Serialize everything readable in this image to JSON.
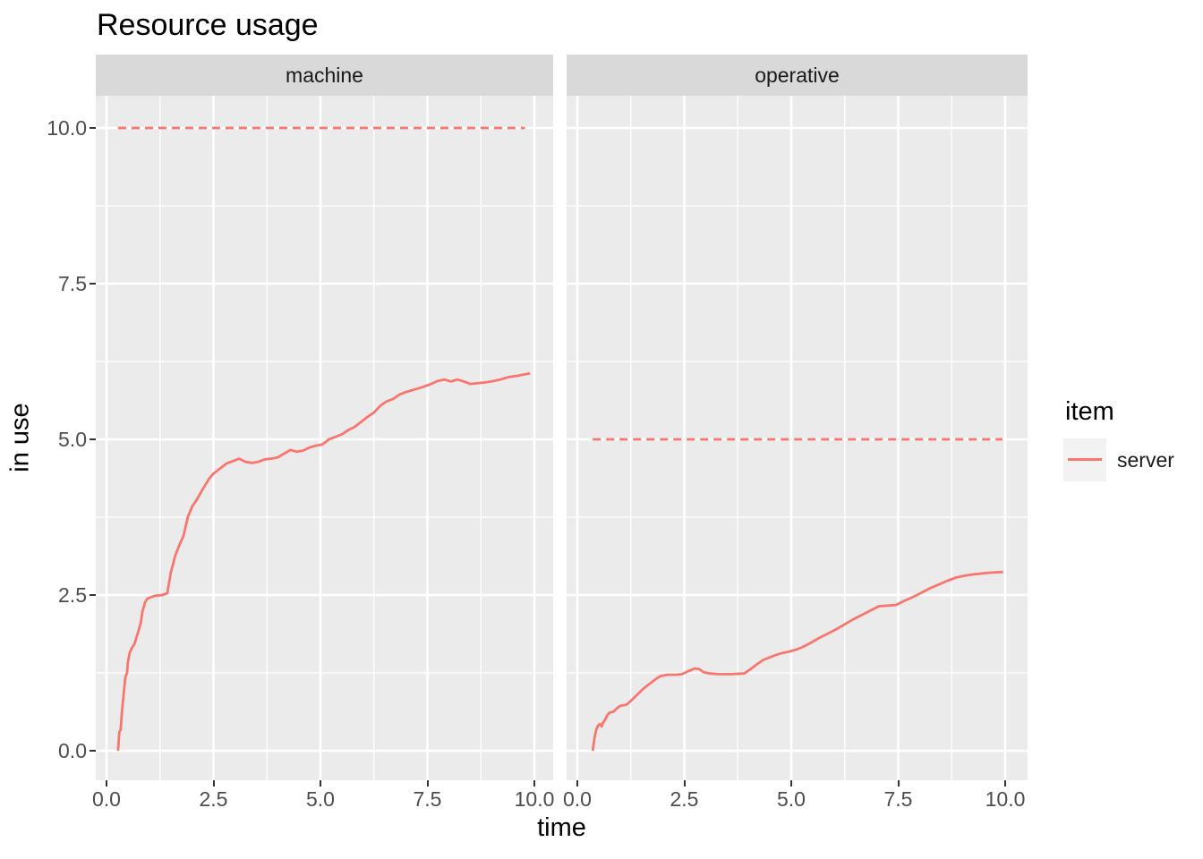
{
  "title": "Resource usage",
  "axes": {
    "x_title": "time",
    "y_title": "in use",
    "x_major": [
      0,
      2.5,
      5,
      7.5,
      10
    ],
    "x_minor": [
      1.25,
      3.75,
      6.25,
      8.75
    ],
    "x_tick_labels": [
      "0.0",
      "2.5",
      "5.0",
      "7.5",
      "10.0"
    ],
    "y_major": [
      0,
      2.5,
      5,
      7.5,
      10
    ],
    "y_minor": [
      1.25,
      3.75,
      6.25,
      8.75
    ],
    "y_tick_labels": [
      "0.0",
      "2.5",
      "5.0",
      "7.5",
      "10.0"
    ]
  },
  "legend": {
    "title": "item",
    "items": [
      {
        "label": "server",
        "color": "#F8766D"
      }
    ]
  },
  "colors": {
    "series_line": "#F8766D",
    "capacity_line": "#F8766D",
    "panel_background": "#EBEBEB",
    "strip_background": "#D9D9D9",
    "gridline": "#FFFFFF",
    "tick_mark": "#333333",
    "tick_text": "#4D4D4D"
  },
  "chart_data": {
    "type": "line",
    "title": "Resource usage",
    "xlabel": "time",
    "ylabel": "in use",
    "x_range": [
      0,
      10
    ],
    "y_range": [
      0,
      10
    ],
    "x_domain_expanded": [
      -0.25,
      10.5
    ],
    "y_domain_expanded": [
      -0.47,
      10.53
    ],
    "grid": true,
    "legend_position": "right",
    "facets": [
      {
        "name": "machine",
        "capacity": 10,
        "capacity_span": [
          0.27,
          9.78
        ],
        "series": [
          {
            "name": "server",
            "points": [
              [
                0.27,
                0
              ],
              [
                0.3,
                0.3
              ],
              [
                0.33,
                0.34
              ],
              [
                0.36,
                0.62
              ],
              [
                0.4,
                0.9
              ],
              [
                0.44,
                1.18
              ],
              [
                0.48,
                1.25
              ],
              [
                0.5,
                1.42
              ],
              [
                0.54,
                1.57
              ],
              [
                0.6,
                1.66
              ],
              [
                0.65,
                1.71
              ],
              [
                0.7,
                1.82
              ],
              [
                0.75,
                1.93
              ],
              [
                0.8,
                2.05
              ],
              [
                0.84,
                2.24
              ],
              [
                0.9,
                2.38
              ],
              [
                0.95,
                2.44
              ],
              [
                1.05,
                2.47
              ],
              [
                1.15,
                2.49
              ],
              [
                1.3,
                2.5
              ],
              [
                1.42,
                2.53
              ],
              [
                1.5,
                2.85
              ],
              [
                1.6,
                3.12
              ],
              [
                1.7,
                3.3
              ],
              [
                1.8,
                3.45
              ],
              [
                1.9,
                3.75
              ],
              [
                2.0,
                3.92
              ],
              [
                2.1,
                4.02
              ],
              [
                2.25,
                4.2
              ],
              [
                2.4,
                4.37
              ],
              [
                2.5,
                4.45
              ],
              [
                2.65,
                4.53
              ],
              [
                2.8,
                4.61
              ],
              [
                2.95,
                4.65
              ],
              [
                3.1,
                4.69
              ],
              [
                3.25,
                4.64
              ],
              [
                3.4,
                4.62
              ],
              [
                3.55,
                4.64
              ],
              [
                3.7,
                4.68
              ],
              [
                3.85,
                4.69
              ],
              [
                4.0,
                4.71
              ],
              [
                4.15,
                4.77
              ],
              [
                4.3,
                4.83
              ],
              [
                4.45,
                4.8
              ],
              [
                4.6,
                4.82
              ],
              [
                4.75,
                4.87
              ],
              [
                4.9,
                4.9
              ],
              [
                5.05,
                4.92
              ],
              [
                5.2,
                5.0
              ],
              [
                5.35,
                5.04
              ],
              [
                5.5,
                5.08
              ],
              [
                5.65,
                5.15
              ],
              [
                5.8,
                5.2
              ],
              [
                5.95,
                5.28
              ],
              [
                6.1,
                5.36
              ],
              [
                6.25,
                5.43
              ],
              [
                6.4,
                5.54
              ],
              [
                6.55,
                5.61
              ],
              [
                6.7,
                5.65
              ],
              [
                6.85,
                5.72
              ],
              [
                7.0,
                5.76
              ],
              [
                7.15,
                5.79
              ],
              [
                7.35,
                5.83
              ],
              [
                7.55,
                5.88
              ],
              [
                7.75,
                5.94
              ],
              [
                7.9,
                5.96
              ],
              [
                8.05,
                5.93
              ],
              [
                8.2,
                5.96
              ],
              [
                8.35,
                5.93
              ],
              [
                8.5,
                5.89
              ],
              [
                8.65,
                5.9
              ],
              [
                8.8,
                5.91
              ],
              [
                9.0,
                5.93
              ],
              [
                9.2,
                5.96
              ],
              [
                9.4,
                6.0
              ],
              [
                9.6,
                6.02
              ],
              [
                9.75,
                6.04
              ],
              [
                9.9,
                6.06
              ]
            ]
          }
        ]
      },
      {
        "name": "operative",
        "capacity": 5,
        "capacity_span": [
          0.36,
          9.94
        ],
        "series": [
          {
            "name": "server",
            "points": [
              [
                0.36,
                0
              ],
              [
                0.4,
                0.2
              ],
              [
                0.44,
                0.33
              ],
              [
                0.48,
                0.4
              ],
              [
                0.53,
                0.43
              ],
              [
                0.57,
                0.39
              ],
              [
                0.6,
                0.45
              ],
              [
                0.65,
                0.5
              ],
              [
                0.7,
                0.57
              ],
              [
                0.75,
                0.61
              ],
              [
                0.85,
                0.63
              ],
              [
                0.92,
                0.68
              ],
              [
                1.0,
                0.72
              ],
              [
                1.15,
                0.74
              ],
              [
                1.25,
                0.8
              ],
              [
                1.4,
                0.9
              ],
              [
                1.55,
                1.0
              ],
              [
                1.7,
                1.08
              ],
              [
                1.85,
                1.16
              ],
              [
                1.95,
                1.2
              ],
              [
                2.1,
                1.22
              ],
              [
                2.3,
                1.22
              ],
              [
                2.45,
                1.23
              ],
              [
                2.6,
                1.28
              ],
              [
                2.75,
                1.32
              ],
              [
                2.85,
                1.31
              ],
              [
                2.95,
                1.26
              ],
              [
                3.1,
                1.24
              ],
              [
                3.3,
                1.23
              ],
              [
                3.6,
                1.23
              ],
              [
                3.9,
                1.24
              ],
              [
                4.05,
                1.31
              ],
              [
                4.2,
                1.39
              ],
              [
                4.35,
                1.46
              ],
              [
                4.5,
                1.5
              ],
              [
                4.65,
                1.54
              ],
              [
                4.8,
                1.57
              ],
              [
                4.95,
                1.59
              ],
              [
                5.1,
                1.62
              ],
              [
                5.25,
                1.66
              ],
              [
                5.45,
                1.73
              ],
              [
                5.65,
                1.81
              ],
              [
                5.85,
                1.88
              ],
              [
                6.05,
                1.95
              ],
              [
                6.25,
                2.03
              ],
              [
                6.45,
                2.11
              ],
              [
                6.65,
                2.18
              ],
              [
                6.85,
                2.25
              ],
              [
                7.05,
                2.32
              ],
              [
                7.25,
                2.33
              ],
              [
                7.45,
                2.34
              ],
              [
                7.65,
                2.41
              ],
              [
                7.85,
                2.47
              ],
              [
                8.05,
                2.54
              ],
              [
                8.25,
                2.61
              ],
              [
                8.45,
                2.67
              ],
              [
                8.65,
                2.73
              ],
              [
                8.85,
                2.78
              ],
              [
                9.05,
                2.81
              ],
              [
                9.25,
                2.83
              ],
              [
                9.5,
                2.85
              ],
              [
                9.7,
                2.86
              ],
              [
                9.95,
                2.87
              ]
            ]
          }
        ]
      }
    ]
  }
}
